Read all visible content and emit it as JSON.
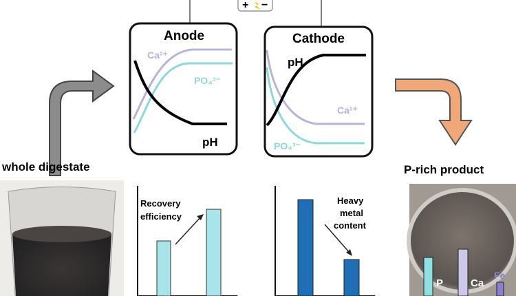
{
  "power": {
    "plus": "+",
    "minus": "−",
    "icon": "lightning-bolt-icon"
  },
  "anode": {
    "title": "Anode",
    "ca": "Ca²⁺",
    "po4": "PO₄³⁻",
    "ph": "pH"
  },
  "cathode": {
    "title": "Cathode",
    "ph": "pH",
    "ca": "Ca²⁺",
    "po4": "PO₄³⁻"
  },
  "left": {
    "label": "whole digestate"
  },
  "right": {
    "label": "P-rich product",
    "bars": [
      "P",
      "Ca",
      "Fe"
    ]
  },
  "recovery": {
    "line1": "Recovery",
    "line2": "efficiency"
  },
  "metal": {
    "line1": "Heavy",
    "line2": "metal",
    "line3": "content"
  },
  "colors": {
    "ca": "#b9b3da",
    "po4": "#8fd8d8",
    "gray_arrow": "#8c8c8c",
    "orange_arrow": "#f0a878",
    "light_bar": "#a8e4ea",
    "dark_bar": "#1f6fb4"
  }
}
